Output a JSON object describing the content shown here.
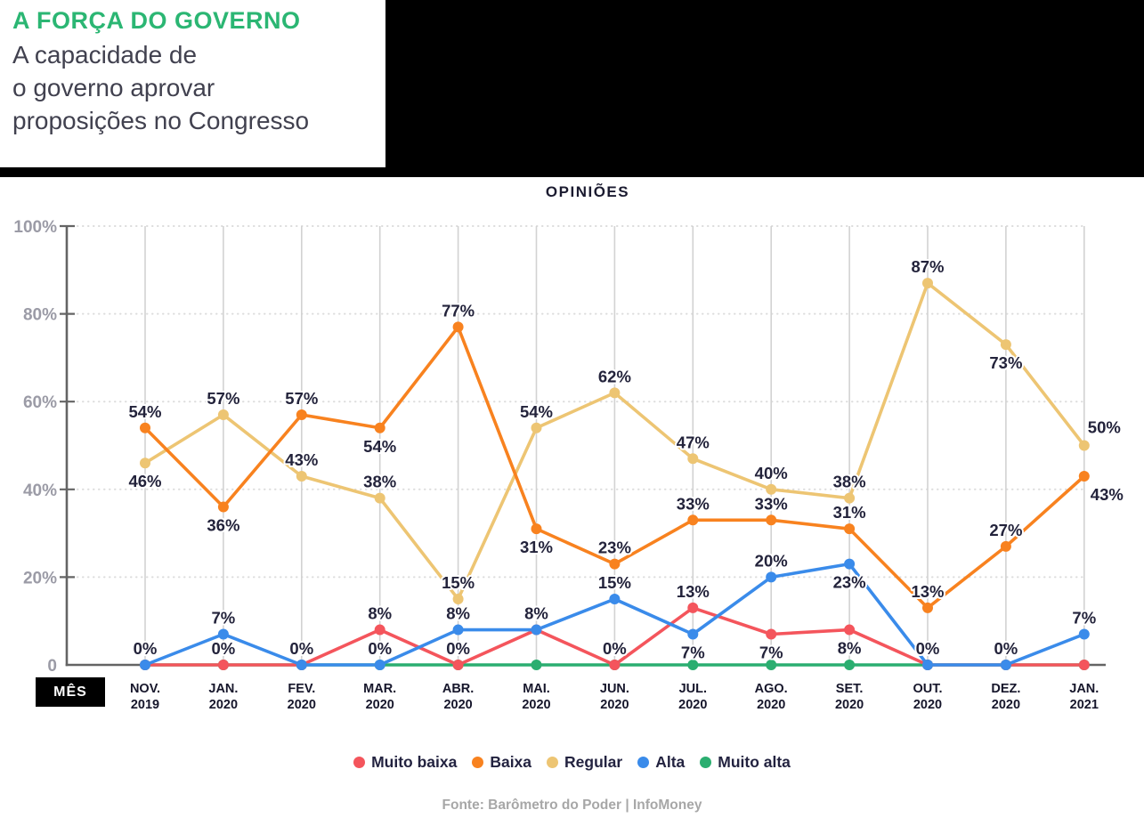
{
  "header": {
    "title": "A FORÇA DO GOVERNO",
    "title_color": "#2BB673",
    "subtitle_lines": [
      "A capacidade de",
      "o governo aprovar",
      "proposições no Congresso"
    ]
  },
  "chart": {
    "title": "OPINIÕES",
    "x_axis_label": "MÊS",
    "footer": "Fonte: Barômetro do Poder | InfoMoney"
  },
  "chart_data": {
    "type": "line",
    "title": "OPINIÕES",
    "ylim": [
      0,
      100
    ],
    "grid": true,
    "legend_position": "bottom",
    "y_ticks": [
      {
        "v": 100,
        "label": "100%"
      },
      {
        "v": 80,
        "label": "80%"
      },
      {
        "v": 60,
        "label": "60%"
      },
      {
        "v": 40,
        "label": "40%"
      },
      {
        "v": 20,
        "label": "20%"
      },
      {
        "v": 0,
        "label": "0"
      }
    ],
    "categories": [
      {
        "month": "NOV.",
        "year": "2019"
      },
      {
        "month": "JAN.",
        "year": "2020"
      },
      {
        "month": "FEV.",
        "year": "2020"
      },
      {
        "month": "MAR.",
        "year": "2020"
      },
      {
        "month": "ABR.",
        "year": "2020"
      },
      {
        "month": "MAI.",
        "year": "2020"
      },
      {
        "month": "JUN.",
        "year": "2020"
      },
      {
        "month": "JUL.",
        "year": "2020"
      },
      {
        "month": "AGO.",
        "year": "2020"
      },
      {
        "month": "SET.",
        "year": "2020"
      },
      {
        "month": "OUT.",
        "year": "2020"
      },
      {
        "month": "DEZ.",
        "year": "2020"
      },
      {
        "month": "JAN.",
        "year": "2021"
      }
    ],
    "series": [
      {
        "name": "Muito baixa",
        "color": "#F4555C",
        "z": 3,
        "values": [
          0,
          0,
          0,
          8,
          0,
          8,
          0,
          13,
          7,
          8,
          0,
          0,
          0
        ],
        "label_pos": [
          "a",
          "a",
          "a",
          "a",
          "a",
          "a",
          "a",
          "a",
          "b",
          "b",
          "a",
          "a",
          null
        ]
      },
      {
        "name": "Baixa",
        "color": "#F8821F",
        "z": 2,
        "values": [
          54,
          36,
          57,
          54,
          77,
          31,
          23,
          33,
          33,
          31,
          13,
          27,
          43
        ],
        "label_pos": [
          "a",
          "b",
          "a",
          "b",
          "a",
          "b",
          "a",
          "a",
          "a",
          "a",
          "a",
          "a",
          "br"
        ]
      },
      {
        "name": "Regular",
        "color": "#EDC573",
        "z": 1,
        "values": [
          46,
          57,
          43,
          38,
          15,
          54,
          62,
          47,
          40,
          38,
          87,
          73,
          50
        ],
        "label_pos": [
          "b",
          "a",
          "a",
          "a",
          "a",
          "a",
          "a",
          "a",
          "a",
          "a",
          "a",
          "b",
          "ar"
        ]
      },
      {
        "name": "Alta",
        "color": "#3A8BEA",
        "z": 4,
        "values": [
          0,
          7,
          0,
          0,
          8,
          8,
          15,
          7,
          20,
          23,
          0,
          0,
          7
        ],
        "label_pos": [
          null,
          "a",
          null,
          "a",
          "a",
          null,
          "a",
          "b",
          "a",
          "b",
          null,
          null,
          "a"
        ]
      },
      {
        "name": "Muito alta",
        "color": "#2BAE70",
        "z": 0,
        "values": [
          0,
          0,
          0,
          0,
          0,
          0,
          0,
          0,
          0,
          0,
          0,
          0,
          0
        ],
        "label_pos": [
          null,
          null,
          null,
          null,
          null,
          null,
          null,
          null,
          null,
          null,
          null,
          null,
          null
        ]
      }
    ]
  }
}
